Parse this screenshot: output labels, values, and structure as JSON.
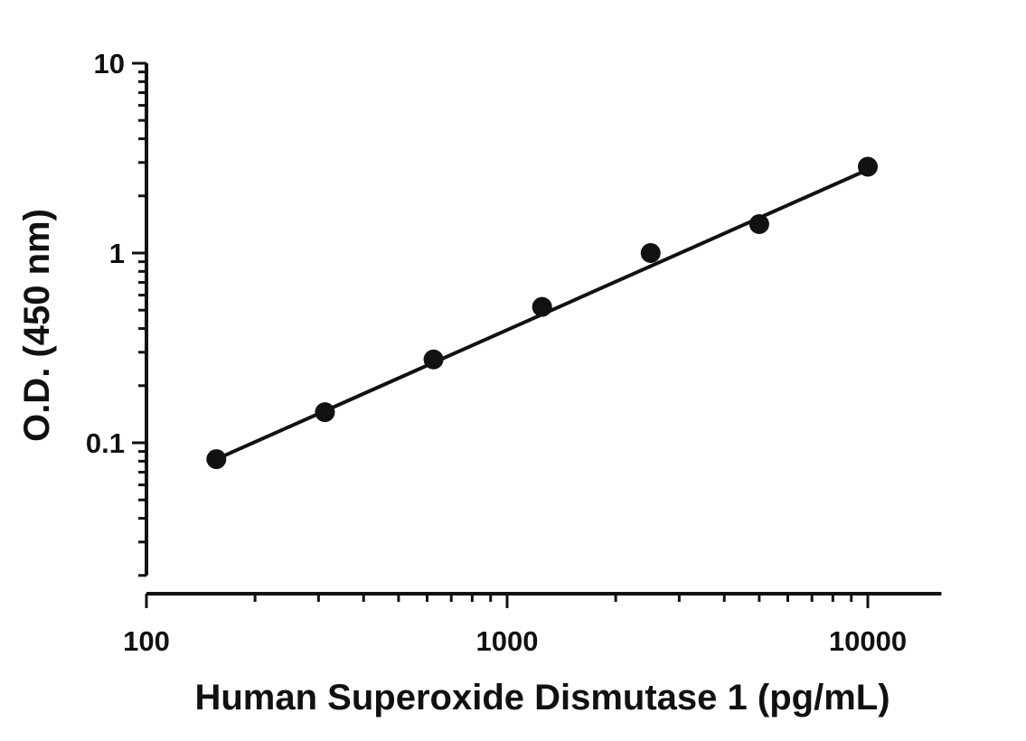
{
  "chart_data": {
    "type": "scatter",
    "xlabel": "Human Superoxide Dismutase 1 (pg/mL)",
    "ylabel": "O.D. (450 nm)",
    "xscale": "log",
    "yscale": "log",
    "xlim": [
      100,
      16000
    ],
    "ylim": [
      0.02,
      10
    ],
    "xticks": [
      {
        "value": 100,
        "label": "100"
      },
      {
        "value": 1000,
        "label": "1000"
      },
      {
        "value": 10000,
        "label": "10000"
      }
    ],
    "yticks": [
      {
        "value": 10,
        "label": "10"
      },
      {
        "value": 1,
        "label": "1"
      },
      {
        "value": 0.1,
        "label": "0.1"
      }
    ],
    "series": [
      {
        "x": [
          156.25,
          312.5,
          625,
          1250,
          2500,
          5000,
          10000
        ],
        "y": [
          0.082,
          0.145,
          0.275,
          0.52,
          1.0,
          1.42,
          2.85
        ]
      }
    ],
    "fit_line": {
      "x": [
        156.25,
        10000
      ],
      "y": [
        0.082,
        2.75
      ]
    },
    "grid": false,
    "color": "#111111"
  }
}
